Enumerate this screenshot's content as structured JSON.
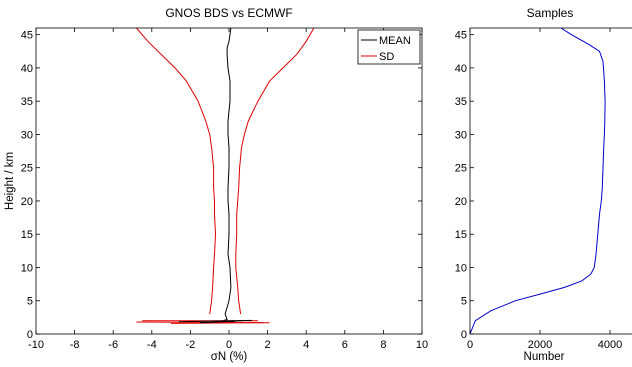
{
  "chart_data": [
    {
      "type": "line",
      "title": "GNOS BDS vs ECMWF",
      "xlabel": "σN (%)",
      "ylabel": "Height / km",
      "xlim": [
        -10,
        10
      ],
      "ylim": [
        0,
        46
      ],
      "xticks": [
        -10,
        -8,
        -6,
        -4,
        -2,
        0,
        2,
        4,
        6,
        8,
        10
      ],
      "yticks": [
        0,
        5,
        10,
        15,
        20,
        25,
        30,
        35,
        40,
        45
      ],
      "grid": false,
      "legend": "top-right",
      "series": [
        {
          "name": "MEAN",
          "color": "#000000",
          "x": [
            0.3,
            -0.4,
            -0.1,
            -0.2,
            -0.1,
            0.0,
            0.1,
            0.05,
            -0.05,
            0.0,
            0.0,
            -0.05,
            -0.05,
            0.0,
            0.0,
            -0.05,
            -0.05,
            0.05,
            0.05,
            -0.05,
            -0.1,
            -0.1,
            0.0,
            0.1
          ],
          "y": [
            1.8,
            1.9,
            2.2,
            3,
            4,
            5,
            7,
            10,
            12,
            15,
            18,
            20,
            22,
            25,
            28,
            30,
            32,
            35,
            38,
            40,
            42,
            43,
            44,
            46
          ]
        },
        {
          "name": "SD",
          "color": "#e00000",
          "x": [
            -1.0,
            -0.9,
            -0.85,
            -0.8,
            -0.75,
            -0.7,
            -0.75,
            -0.75,
            -0.8,
            -0.8,
            -0.9,
            -1.0,
            -1.2,
            -1.6,
            -2.2,
            -2.8,
            -3.5,
            -4.2,
            -4.8
          ],
          "y": [
            3,
            5,
            7,
            10,
            12,
            15,
            18,
            20,
            22,
            25,
            28,
            30,
            32,
            35,
            38,
            40,
            42,
            44,
            46
          ],
          "x2": [
            0.6,
            0.5,
            0.45,
            0.35,
            0.35,
            0.4,
            0.4,
            0.45,
            0.5,
            0.55,
            0.65,
            0.8,
            1.0,
            1.5,
            2.1,
            2.8,
            3.5,
            4.0,
            4.4
          ],
          "y2": [
            3,
            5,
            7,
            10,
            12,
            15,
            18,
            20,
            22,
            25,
            28,
            30,
            32,
            35,
            38,
            40,
            42,
            44,
            46
          ]
        }
      ]
    },
    {
      "type": "line",
      "title": "Samples",
      "xlabel": "Number",
      "ylabel": "",
      "xlim": [
        0,
        5000
      ],
      "ylim": [
        0,
        46
      ],
      "xticks": [
        0,
        2000,
        4000
      ],
      "yticks": [
        0,
        5,
        10,
        15,
        20,
        25,
        30,
        35,
        40,
        45
      ],
      "grid": false,
      "series": [
        {
          "color": "#0000cc",
          "x": [
            0,
            150,
            600,
            1300,
            2000,
            2700,
            3200,
            3450,
            3550,
            3600,
            3650,
            3700,
            3750,
            3780,
            3800,
            3820,
            3840,
            3850,
            3860,
            3840,
            3800,
            3700,
            3400,
            2900,
            2600
          ],
          "y": [
            0,
            2,
            3.5,
            5,
            6,
            7,
            8,
            9,
            10,
            12,
            15,
            18,
            20,
            22,
            25,
            28,
            30,
            32,
            35,
            38,
            41,
            42.5,
            43.5,
            45,
            46
          ]
        }
      ]
    }
  ]
}
